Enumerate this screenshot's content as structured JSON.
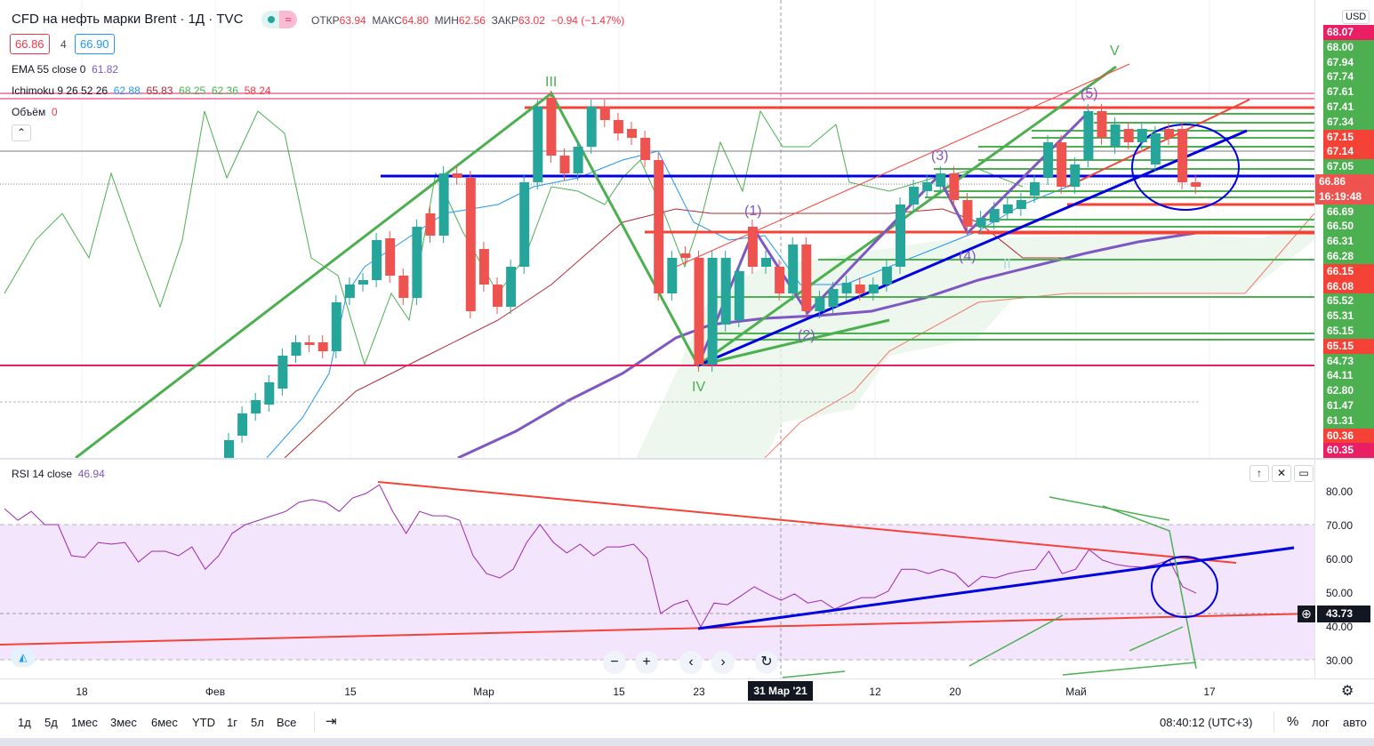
{
  "header": {
    "title": "CFD на нефть марки Brent · 1Д · TVC",
    "ohlc": [
      {
        "k": "ОТКР",
        "v": "63.94"
      },
      {
        "k": "МАКС",
        "v": "64.80"
      },
      {
        "k": "МИН",
        "v": "62.56"
      },
      {
        "k": "ЗАКР",
        "v": "63.02"
      }
    ],
    "change": "−0.94 (−1.47%)",
    "sell": "66.86",
    "spread": "4",
    "buy": "66.90"
  },
  "indicators": {
    "ema": {
      "label": "EMA 55 close 0",
      "value": "61.82"
    },
    "ichimoku": {
      "label": "Ichimoku 9 26 52 26",
      "values": [
        "62.88",
        "65.83",
        "68.25",
        "62.36",
        "58.24"
      ]
    },
    "volume": {
      "label": "Объём",
      "value": "0"
    },
    "rsi": {
      "label": "RSI 14 close",
      "value": "46.94"
    }
  },
  "price_axis": {
    "currency": "USD",
    "labels": [
      {
        "v": "68.07",
        "c": "#e91e63"
      },
      {
        "v": "68.00",
        "c": "#4caf50"
      },
      {
        "v": "67.94",
        "c": "#4caf50"
      },
      {
        "v": "67.74",
        "c": "#4caf50"
      },
      {
        "v": "67.61",
        "c": "#4caf50"
      },
      {
        "v": "67.41",
        "c": "#4caf50"
      },
      {
        "v": "67.34",
        "c": "#4caf50"
      },
      {
        "v": "67.15",
        "c": "#f44336"
      },
      {
        "v": "67.14",
        "c": "#f44336"
      },
      {
        "v": "67.05",
        "c": "#4caf50"
      },
      {
        "v": "66.86",
        "c": "#ef5350"
      },
      {
        "v": "16:19:48",
        "c": "#ef5350"
      },
      {
        "v": "66.69",
        "c": "#4caf50"
      },
      {
        "v": "66.50",
        "c": "#4caf50"
      },
      {
        "v": "66.31",
        "c": "#4caf50"
      },
      {
        "v": "66.28",
        "c": "#4caf50"
      },
      {
        "v": "66.15",
        "c": "#f44336"
      },
      {
        "v": "66.08",
        "c": "#f44336"
      },
      {
        "v": "65.52",
        "c": "#4caf50"
      },
      {
        "v": "65.31",
        "c": "#4caf50"
      },
      {
        "v": "65.15",
        "c": "#4caf50"
      },
      {
        "v": "65.15",
        "c": "#f44336"
      },
      {
        "v": "64.73",
        "c": "#4caf50"
      },
      {
        "v": "64.11",
        "c": "#4caf50"
      },
      {
        "v": "62.80",
        "c": "#4caf50"
      },
      {
        "v": "61.47",
        "c": "#4caf50"
      },
      {
        "v": "61.31",
        "c": "#4caf50"
      },
      {
        "v": "60.36",
        "c": "#f44336"
      },
      {
        "v": "60.35",
        "c": "#e91e63"
      }
    ]
  },
  "rsi_axis": {
    "labels": [
      "80.00",
      "70.00",
      "60.00",
      "50.00",
      "40.00",
      "30.00"
    ],
    "cursor": "43.73"
  },
  "wave_labels": {
    "III": "III",
    "IV": "IV",
    "V": "V",
    "w1": "(1)",
    "w2": "(2)",
    "w3": "(3)",
    "w4": "(4)",
    "w5": "(5)",
    "ii": "II"
  },
  "candles": [
    [
      63.45,
      63.65
    ],
    [
      63.7,
      63.95
    ],
    [
      63.95,
      64.1
    ],
    [
      64.05,
      64.3
    ],
    [
      64.23,
      64.6
    ],
    [
      64.6,
      64.75
    ],
    [
      64.75,
      64.72
    ],
    [
      64.75,
      64.65
    ],
    [
      64.65,
      65.2
    ],
    [
      65.25,
      65.4
    ],
    [
      65.4,
      65.45
    ],
    [
      65.45,
      65.9
    ],
    [
      65.92,
      65.5
    ],
    [
      65.5,
      65.25
    ],
    [
      65.25,
      66.05
    ],
    [
      66.2,
      65.95
    ],
    [
      65.95,
      66.65
    ],
    [
      66.65,
      66.6
    ],
    [
      66.6,
      65.1
    ],
    [
      65.8,
      65.4
    ],
    [
      65.4,
      65.15
    ],
    [
      65.15,
      65.6
    ],
    [
      65.6,
      66.55
    ],
    [
      66.55,
      67.4
    ],
    [
      67.5,
      66.85
    ],
    [
      66.85,
      66.65
    ],
    [
      66.65,
      66.95
    ],
    [
      66.95,
      67.4
    ],
    [
      67.4,
      67.25
    ],
    [
      67.25,
      67.1
    ],
    [
      67.15,
      67.05
    ],
    [
      67.05,
      66.8
    ],
    [
      66.8,
      65.3
    ],
    [
      65.3,
      65.7
    ],
    [
      65.75,
      65.7
    ],
    [
      65.7,
      64.5
    ],
    [
      64.5,
      65.7
    ],
    [
      64.95,
      65.7
    ],
    [
      65.0,
      65.55
    ],
    [
      66.05,
      65.6
    ],
    [
      65.6,
      65.7
    ],
    [
      65.6,
      65.3
    ],
    [
      65.3,
      65.85
    ],
    [
      65.85,
      65.1
    ],
    [
      65.1,
      65.25
    ],
    [
      65.15,
      65.35
    ],
    [
      65.3,
      65.42
    ],
    [
      65.4,
      65.3
    ],
    [
      65.3,
      65.4
    ],
    [
      65.4,
      65.6
    ],
    [
      65.6,
      66.3
    ],
    [
      66.3,
      66.5
    ],
    [
      66.45,
      66.55
    ],
    [
      66.5,
      66.65
    ],
    [
      66.65,
      66.35
    ],
    [
      66.35,
      66.05
    ],
    [
      66.05,
      66.15
    ],
    [
      66.1,
      66.25
    ],
    [
      66.2,
      66.3
    ],
    [
      66.25,
      66.35
    ],
    [
      66.4,
      66.55
    ],
    [
      66.6,
      67.0
    ],
    [
      67.0,
      66.5
    ],
    [
      66.5,
      66.75
    ],
    [
      66.8,
      67.35
    ],
    [
      67.35,
      67.05
    ],
    [
      66.95,
      67.2
    ],
    [
      67.15,
      67.0
    ],
    [
      67.0,
      67.15
    ],
    [
      66.75,
      67.1
    ],
    [
      67.15,
      67.05
    ],
    [
      67.15,
      66.55
    ],
    [
      66.55,
      66.5
    ]
  ],
  "rsi_values": [
    74.7,
    71.3,
    73.9,
    70,
    70,
    60.8,
    60.3,
    64.7,
    64.2,
    64.7,
    58.9,
    62.1,
    62.1,
    60.8,
    63.4,
    56.8,
    60.8,
    67.4,
    70,
    71.3,
    72.6,
    73.9,
    76.6,
    77.4,
    76.6,
    73.9,
    77.9,
    79.2,
    81.8,
    73.9,
    67.4,
    73.9,
    72.6,
    72.6,
    71.3,
    60.8,
    55.5,
    54.2,
    56.8,
    64.7,
    70,
    64.7,
    61.6,
    64.2,
    60.8,
    63.4,
    63.4,
    64.2,
    60,
    43.7,
    46.3,
    47.6,
    39.7,
    46.8,
    46.3,
    48.9,
    51.6,
    49.5,
    47.6,
    49.5,
    46.8,
    47.6,
    45,
    46.8,
    48.4,
    48.4,
    50.3,
    56.8,
    56.8,
    55.5,
    56.8,
    55.5,
    51.6,
    54.7,
    54.2,
    55.5,
    56.3,
    56.8,
    62.1,
    55.5,
    56.8,
    62.6,
    59.5,
    58.2,
    57.6,
    57.4,
    58.2,
    59.5,
    51.6,
    49.7
  ],
  "time_axis": {
    "labels": [
      "18",
      "Фев",
      "15",
      "Мар",
      "15",
      "23",
      "12",
      "20",
      "Май",
      "17"
    ],
    "cursor": "31 Мар '21"
  },
  "toolbar": {
    "ranges": [
      "1д",
      "5д",
      "1мес",
      "3мес",
      "6мес",
      "YTD",
      "1г",
      "5л",
      "Все"
    ],
    "clock": "08:40:12 (UTC+3)",
    "percent": "%",
    "log": "лог",
    "auto": "авто"
  },
  "colors": {
    "up": "#26a69a",
    "down": "#ef5350",
    "rsi_band": "#f3e5fc",
    "rsi_line": "#9c27b0"
  }
}
